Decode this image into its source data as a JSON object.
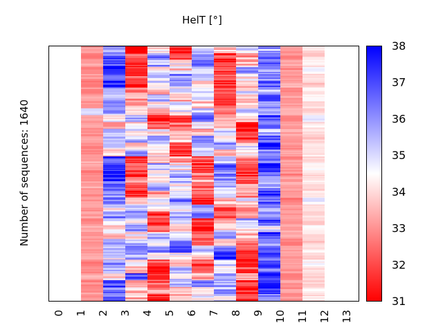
{
  "chart_data": {
    "type": "heatmap",
    "title": "HelT [°]",
    "xlabel": "",
    "ylabel": "Number of sequences: 1640",
    "n_sequences": 1640,
    "x_ticks": [
      "0",
      "1",
      "2",
      "3",
      "4",
      "5",
      "6",
      "7",
      "8",
      "9",
      "10",
      "11",
      "12",
      "13"
    ],
    "x_range": [
      0,
      13
    ],
    "data_columns": [
      1,
      2,
      3,
      4,
      5,
      6,
      7,
      8,
      9,
      10,
      11
    ],
    "colorbar": {
      "label": "",
      "min": 31,
      "max": 38,
      "ticks": [
        "31",
        "32",
        "33",
        "34",
        "35",
        "36",
        "37",
        "38"
      ],
      "colormap": "bwr_reversed",
      "low_color": "#ff0000",
      "mid_color": "#ffffff",
      "high_color": "#0000ff"
    },
    "block_rows": 37,
    "columns": [
      {
        "position": 1,
        "values": [
          33.0,
          32.8,
          33.2,
          32.9,
          33.1,
          32.8,
          33.0,
          33.2,
          32.9,
          34.9,
          33.1,
          33.0,
          32.9,
          33.3,
          32.8,
          33.0,
          33.2,
          33.1,
          32.9,
          33.0,
          33.3,
          32.8,
          33.1,
          33.0,
          33.2,
          32.9,
          33.4,
          33.0,
          32.9,
          33.1,
          33.2,
          32.8,
          33.0,
          33.3,
          32.9,
          33.1,
          33.0
        ]
      },
      {
        "position": 2,
        "values": [
          36.2,
          36.6,
          37.0,
          37.4,
          36.4,
          37.6,
          36.0,
          35.2,
          36.8,
          35.8,
          34.6,
          33.8,
          35.0,
          36.0,
          34.8,
          33.6,
          36.8,
          37.6,
          37.2,
          37.0,
          36.6,
          35.5,
          36.4,
          34.6,
          36.2,
          34.8,
          34.2,
          33.8,
          36.0,
          35.4,
          34.8,
          36.2,
          35.6,
          34.0,
          37.2,
          36.4,
          36.6
        ]
      },
      {
        "position": 3,
        "values": [
          31.6,
          32.4,
          31.8,
          31.7,
          32.0,
          31.6,
          32.6,
          33.4,
          33.2,
          34.4,
          35.6,
          33.8,
          34.8,
          35.4,
          33.6,
          35.8,
          31.8,
          32.2,
          31.6,
          32.8,
          31.9,
          31.7,
          33.6,
          35.6,
          35.8,
          34.6,
          36.0,
          34.4,
          35.2,
          36.4,
          35.8,
          34.6,
          33.2,
          36.8,
          33.4,
          33.8,
          33.6
        ]
      },
      {
        "position": 4,
        "values": [
          34.2,
          36.4,
          35.8,
          34.4,
          35.2,
          34.8,
          33.6,
          35.6,
          34.6,
          33.2,
          31.6,
          31.8,
          34.4,
          35.6,
          35.0,
          34.2,
          33.8,
          35.8,
          34.6,
          34.8,
          35.6,
          33.4,
          34.4,
          34.6,
          31.8,
          31.6,
          32.2,
          35.4,
          34.4,
          36.0,
          34.6,
          32.0,
          31.6,
          31.7,
          32.4,
          33.0,
          31.6
        ]
      },
      {
        "position": 5,
        "values": [
          31.6,
          32.4,
          34.6,
          34.0,
          36.0,
          35.8,
          34.4,
          33.2,
          35.4,
          34.6,
          31.8,
          32.6,
          33.0,
          33.8,
          32.0,
          31.7,
          33.4,
          34.4,
          35.6,
          35.8,
          34.2,
          35.0,
          36.2,
          34.4,
          35.4,
          34.8,
          33.6,
          34.6,
          36.0,
          36.8,
          34.8,
          33.6,
          35.6,
          34.8,
          35.2,
          33.4,
          33.8
        ]
      },
      {
        "position": 6,
        "values": [
          34.8,
          35.6,
          36.8,
          34.6,
          35.8,
          34.2,
          35.4,
          34.6,
          33.8,
          35.6,
          36.2,
          34.4,
          33.6,
          35.8,
          35.2,
          34.6,
          31.8,
          31.6,
          32.4,
          33.2,
          32.0,
          31.8,
          31.6,
          35.4,
          36.4,
          31.7,
          31.9,
          32.2,
          32.8,
          36.0,
          33.6,
          32.0,
          31.9,
          33.4,
          36.2,
          35.0,
          34.2
        ]
      },
      {
        "position": 7,
        "values": [
          33.6,
          31.7,
          31.6,
          31.6,
          31.8,
          31.7,
          31.6,
          32.4,
          31.8,
          32.6,
          33.4,
          34.0,
          35.6,
          34.6,
          36.4,
          33.8,
          34.8,
          37.0,
          36.2,
          35.8,
          35.2,
          34.6,
          33.4,
          32.2,
          31.8,
          33.2,
          34.4,
          35.8,
          33.6,
          36.8,
          38.0,
          35.4,
          34.4,
          36.2,
          35.6,
          35.8,
          34.8
        ]
      },
      {
        "position": 8,
        "values": [
          34.6,
          33.4,
          33.6,
          35.6,
          34.2,
          33.8,
          34.6,
          33.2,
          33.6,
          35.2,
          34.4,
          31.6,
          31.8,
          32.0,
          34.6,
          33.8,
          32.4,
          31.6,
          31.8,
          32.6,
          33.8,
          33.2,
          34.4,
          32.8,
          33.0,
          35.6,
          34.2,
          33.6,
          32.6,
          31.7,
          31.6,
          32.0,
          31.8,
          33.6,
          31.6,
          31.7,
          31.8
        ]
      },
      {
        "position": 9,
        "values": [
          35.6,
          36.2,
          36.6,
          35.8,
          36.4,
          36.8,
          35.2,
          36.6,
          36.0,
          35.8,
          37.0,
          36.2,
          35.6,
          36.6,
          37.4,
          35.8,
          36.4,
          37.6,
          36.8,
          36.0,
          35.6,
          37.2,
          36.6,
          35.8,
          36.4,
          36.8,
          34.8,
          37.0,
          36.2,
          36.4,
          36.6,
          37.0,
          36.4,
          37.4,
          37.6,
          37.2,
          36.6
        ]
      },
      {
        "position": 10,
        "values": [
          33.2,
          33.0,
          33.3,
          32.9,
          33.1,
          33.4,
          33.0,
          33.2,
          33.1,
          33.4,
          32.8,
          33.0,
          33.2,
          33.1,
          32.9,
          33.3,
          33.0,
          33.1,
          32.9,
          33.2,
          33.4,
          33.0,
          32.8,
          33.1,
          33.2,
          33.0,
          33.3,
          33.4,
          32.9,
          33.1,
          33.2,
          33.3,
          33.0,
          32.9,
          33.2,
          33.1,
          33.0
        ]
      },
      {
        "position": 11,
        "values": [
          34.0,
          33.9,
          34.2,
          34.6,
          34.0,
          33.8,
          34.1,
          34.4,
          34.0,
          33.9,
          34.7,
          34.2,
          34.0,
          33.9,
          34.4,
          34.1,
          34.0,
          34.6,
          33.9,
          34.2,
          34.0,
          34.3,
          34.7,
          33.9,
          34.1,
          34.0,
          34.4,
          34.2,
          33.8,
          34.1,
          34.0,
          34.5,
          34.2,
          33.9,
          34.0,
          34.3,
          34.1
        ]
      }
    ]
  }
}
